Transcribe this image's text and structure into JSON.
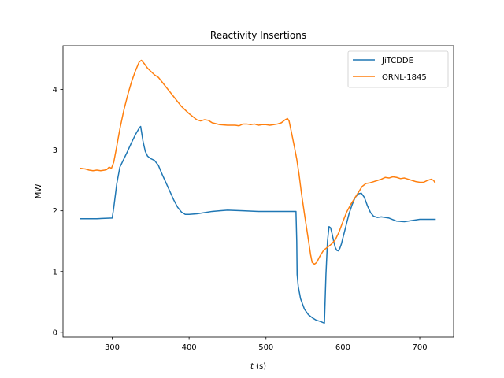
{
  "chart_data": {
    "type": "line",
    "title": "Reactivity Insertions",
    "xlabel_var": "t",
    "xlabel_unit": " (s)",
    "ylabel": "MW",
    "xlim": [
      236,
      744
    ],
    "ylim": [
      -0.08,
      4.72
    ],
    "xticks": [
      300,
      400,
      500,
      600,
      700
    ],
    "yticks": [
      0,
      1,
      2,
      3,
      4
    ],
    "grid": false,
    "legend_position": "upper right",
    "series": [
      {
        "name": "JiTCDDE",
        "color": "#1f77b4",
        "x": [
          259,
          280,
          300,
          302,
          306,
          310,
          315,
          320,
          325,
          330,
          335,
          337,
          340,
          343,
          346,
          350,
          355,
          360,
          365,
          370,
          375,
          380,
          385,
          390,
          395,
          400,
          410,
          420,
          430,
          440,
          450,
          470,
          490,
          510,
          530,
          539,
          540,
          540.5,
          542,
          545,
          550,
          555,
          560,
          565,
          570,
          576,
          576.5,
          578,
          580,
          582,
          584,
          586,
          588,
          590,
          592,
          594,
          596,
          598,
          600,
          602,
          605,
          608,
          612,
          616,
          620,
          624,
          628,
          632,
          636,
          640,
          645,
          650,
          660,
          670,
          680,
          690,
          700,
          710,
          720
        ],
        "y": [
          1.87,
          1.87,
          1.88,
          2.05,
          2.45,
          2.72,
          2.85,
          2.98,
          3.12,
          3.25,
          3.36,
          3.39,
          3.15,
          2.98,
          2.9,
          2.86,
          2.83,
          2.75,
          2.6,
          2.46,
          2.32,
          2.18,
          2.06,
          1.98,
          1.94,
          1.94,
          1.95,
          1.97,
          1.99,
          2.0,
          2.01,
          2.0,
          1.99,
          1.99,
          1.99,
          1.99,
          1.5,
          0.95,
          0.75,
          0.55,
          0.38,
          0.29,
          0.24,
          0.2,
          0.18,
          0.15,
          0.35,
          0.95,
          1.5,
          1.74,
          1.72,
          1.62,
          1.5,
          1.4,
          1.35,
          1.34,
          1.38,
          1.45,
          1.55,
          1.65,
          1.8,
          1.95,
          2.1,
          2.22,
          2.28,
          2.29,
          2.22,
          2.08,
          1.97,
          1.91,
          1.89,
          1.9,
          1.88,
          1.83,
          1.82,
          1.84,
          1.86,
          1.86,
          1.86
        ]
      },
      {
        "name": "ORNL-1845",
        "color": "#ff7f0e",
        "x": [
          259,
          265,
          270,
          275,
          280,
          285,
          290,
          293,
          296,
          299,
          302,
          305,
          310,
          315,
          320,
          325,
          330,
          335,
          338,
          342,
          346,
          350,
          355,
          360,
          365,
          370,
          375,
          380,
          385,
          390,
          395,
          400,
          405,
          410,
          415,
          420,
          425,
          430,
          440,
          450,
          460,
          465,
          470,
          475,
          480,
          485,
          490,
          495,
          500,
          505,
          510,
          515,
          520,
          525,
          528,
          530,
          533,
          537,
          540,
          543,
          546,
          550,
          553,
          556,
          558,
          560,
          563,
          566,
          570,
          575,
          580,
          585,
          590,
          595,
          600,
          605,
          610,
          615,
          620,
          625,
          630,
          635,
          640,
          645,
          650,
          655,
          660,
          665,
          670,
          675,
          680,
          685,
          690,
          695,
          700,
          705,
          710,
          715,
          718,
          720
        ],
        "y": [
          2.7,
          2.69,
          2.67,
          2.66,
          2.67,
          2.66,
          2.67,
          2.68,
          2.72,
          2.7,
          2.8,
          3.0,
          3.35,
          3.65,
          3.9,
          4.12,
          4.3,
          4.45,
          4.48,
          4.42,
          4.35,
          4.3,
          4.24,
          4.2,
          4.12,
          4.04,
          3.96,
          3.88,
          3.8,
          3.72,
          3.66,
          3.6,
          3.55,
          3.5,
          3.48,
          3.5,
          3.49,
          3.45,
          3.42,
          3.41,
          3.41,
          3.4,
          3.43,
          3.43,
          3.42,
          3.43,
          3.41,
          3.42,
          3.42,
          3.41,
          3.42,
          3.43,
          3.45,
          3.5,
          3.52,
          3.48,
          3.3,
          3.05,
          2.85,
          2.6,
          2.3,
          1.95,
          1.7,
          1.45,
          1.28,
          1.15,
          1.12,
          1.15,
          1.25,
          1.35,
          1.4,
          1.45,
          1.52,
          1.65,
          1.82,
          1.98,
          2.1,
          2.2,
          2.3,
          2.4,
          2.45,
          2.46,
          2.48,
          2.5,
          2.52,
          2.55,
          2.54,
          2.56,
          2.55,
          2.53,
          2.54,
          2.52,
          2.5,
          2.48,
          2.47,
          2.47,
          2.5,
          2.52,
          2.5,
          2.46
        ]
      }
    ]
  }
}
